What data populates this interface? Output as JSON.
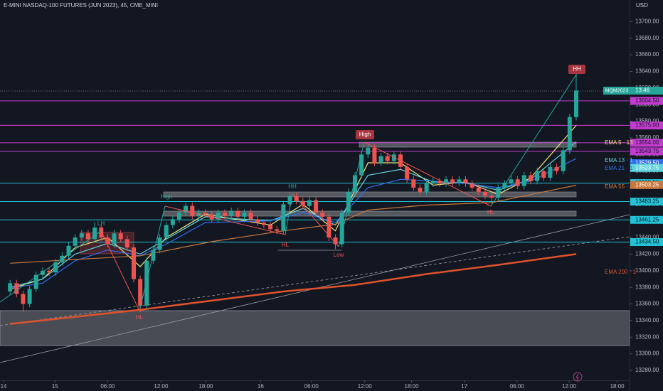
{
  "chart_data": {
    "type": "candlestick",
    "title": "E-MINI NASDAQ-100 FUTURES (JUN 2023), 45, CME_MINI",
    "currency": "USD",
    "symbol_tag": "MQM2023",
    "countdown": "13:46",
    "up_color": "#26a69a",
    "down_color": "#ef5350",
    "xlim": [
      -1.55,
      95.2
    ],
    "ylim": [
      13268,
      13726
    ],
    "xticks": [
      {
        "value": -1,
        "label": "14"
      },
      {
        "value": 6.9,
        "label": "15"
      },
      {
        "value": 15,
        "label": "06:00"
      },
      {
        "value": 23.2,
        "label": "12:00"
      },
      {
        "value": 30.1,
        "label": "18:00"
      },
      {
        "value": 38.5,
        "label": "16"
      },
      {
        "value": 46.3,
        "label": "06:00"
      },
      {
        "value": 54.5,
        "label": "12:00"
      },
      {
        "value": 61.7,
        "label": "18:00"
      },
      {
        "value": 69.8,
        "label": "17"
      },
      {
        "value": 77.9,
        "label": "06:00"
      },
      {
        "value": 85.9,
        "label": "12:00"
      },
      {
        "value": 93.3,
        "label": "18:00"
      }
    ],
    "yticks": [
      {
        "value": 13280,
        "label": "13280.00"
      },
      {
        "value": 13300,
        "label": "13300.00"
      },
      {
        "value": 13320,
        "label": "13320.00"
      },
      {
        "value": 13340,
        "label": "13340.00"
      },
      {
        "value": 13360,
        "label": "13360.00"
      },
      {
        "value": 13380,
        "label": "13380.00"
      },
      {
        "value": 13400,
        "label": "13400.00"
      },
      {
        "value": 13420,
        "label": "13420.00"
      },
      {
        "value": 13440,
        "label": "13440.00"
      },
      {
        "value": 13460,
        "label": "13460.00"
      },
      {
        "value": 13480,
        "label": "13480.00"
      },
      {
        "value": 13500,
        "label": "13500.00"
      },
      {
        "value": 13520,
        "label": "13520.00"
      },
      {
        "value": 13540,
        "label": "13540.00"
      },
      {
        "value": 13560,
        "label": "13560.00"
      },
      {
        "value": 13580,
        "label": "13580.00"
      },
      {
        "value": 13600,
        "label": "13600.00"
      },
      {
        "value": 13620,
        "label": "13620.00"
      },
      {
        "value": 13640,
        "label": "13640.00"
      },
      {
        "value": 13660,
        "label": "13660.00"
      },
      {
        "value": 13680,
        "label": "13680.00"
      },
      {
        "value": 13700,
        "label": "13700.00"
      }
    ],
    "open": [
      13375,
      13385,
      13372,
      13360,
      13378,
      13395,
      13400,
      13398,
      13410,
      13418,
      13430,
      13440,
      13445,
      13438,
      13452,
      13440,
      13432,
      13445,
      13438,
      13428,
      13390,
      13358,
      13412,
      13425,
      13440,
      13455,
      13462,
      13470,
      13478,
      13466,
      13470,
      13468,
      13462,
      13470,
      13466,
      13472,
      13465,
      13470,
      13462,
      13458,
      13455,
      13450,
      13448,
      13480,
      13490,
      13484,
      13478,
      13485,
      13470,
      13465,
      13440,
      13432,
      13470,
      13495,
      13515,
      13540,
      13548,
      13530,
      13538,
      13532,
      13540,
      13525,
      13510,
      13500,
      13495,
      13505,
      13508,
      13505,
      13510,
      13506,
      13510,
      13505,
      13500,
      13495,
      13490,
      13488,
      13500,
      13505,
      13510,
      13502,
      13515,
      13508,
      13520,
      13512,
      13525,
      13520,
      13545,
      13585
    ],
    "high": [
      13389,
      13389,
      13376,
      13382,
      13399,
      13404,
      13404,
      13414,
      13422,
      13434,
      13444,
      13449,
      13449,
      13458,
      13456,
      13444,
      13449,
      13449,
      13442,
      13432,
      13394,
      13416,
      13429,
      13444,
      13459,
      13466,
      13474,
      13482,
      13482,
      13474,
      13474,
      13472,
      13474,
      13474,
      13476,
      13476,
      13474,
      13474,
      13466,
      13462,
      13459,
      13454,
      13484,
      13494,
      13494,
      13488,
      13489,
      13489,
      13474,
      13469,
      13444,
      13474,
      13499,
      13519,
      13544,
      13553,
      13552,
      13542,
      13542,
      13544,
      13544,
      13529,
      13514,
      13504,
      13509,
      13512,
      13512,
      13514,
      13514,
      13514,
      13514,
      13509,
      13504,
      13499,
      13494,
      13504,
      13509,
      13514,
      13514,
      13519,
      13519,
      13524,
      13524,
      13529,
      13529,
      13549,
      13589,
      13637
    ],
    "low": [
      13371,
      13368,
      13350,
      13356,
      13374,
      13391,
      13394,
      13394,
      13406,
      13414,
      13426,
      13436,
      13434,
      13434,
      13436,
      13428,
      13428,
      13434,
      13424,
      13386,
      13350,
      13354,
      13408,
      13421,
      13436,
      13451,
      13458,
      13466,
      13462,
      13462,
      13464,
      13458,
      13458,
      13462,
      13462,
      13461,
      13461,
      13458,
      13454,
      13451,
      13446,
      13444,
      13444,
      13476,
      13480,
      13474,
      13474,
      13466,
      13461,
      13436,
      13426,
      13428,
      13466,
      13491,
      13511,
      13536,
      13526,
      13526,
      13528,
      13528,
      13521,
      13506,
      13496,
      13491,
      13491,
      13501,
      13501,
      13501,
      13502,
      13502,
      13501,
      13496,
      13491,
      13486,
      13482,
      13484,
      13496,
      13501,
      13498,
      13498,
      13504,
      13504,
      13508,
      13508,
      13516,
      13516,
      13541,
      13581
    ],
    "close": [
      13385,
      13372,
      13360,
      13378,
      13395,
      13400,
      13398,
      13410,
      13418,
      13430,
      13440,
      13445,
      13438,
      13452,
      13440,
      13432,
      13445,
      13438,
      13428,
      13390,
      13358,
      13412,
      13425,
      13440,
      13455,
      13462,
      13470,
      13478,
      13466,
      13470,
      13468,
      13462,
      13470,
      13466,
      13472,
      13465,
      13470,
      13462,
      13458,
      13455,
      13450,
      13448,
      13480,
      13490,
      13484,
      13478,
      13485,
      13470,
      13465,
      13440,
      13432,
      13470,
      13495,
      13515,
      13540,
      13548,
      13530,
      13538,
      13532,
      13540,
      13525,
      13510,
      13500,
      13495,
      13505,
      13508,
      13505,
      13510,
      13506,
      13510,
      13505,
      13500,
      13495,
      13490,
      13488,
      13500,
      13505,
      13510,
      13502,
      13515,
      13508,
      13520,
      13512,
      13525,
      13520,
      13545,
      13585,
      13617
    ],
    "series": [
      {
        "name": "EMA 5 · 13",
        "color": "#f3e27a",
        "x": [
          0,
          5,
          10,
          15,
          20,
          24,
          30,
          40,
          45,
          50,
          55,
          60,
          65,
          70,
          75,
          80,
          87
        ],
        "values": [
          13378,
          13390,
          13428,
          13440,
          13405,
          13440,
          13468,
          13455,
          13480,
          13448,
          13530,
          13530,
          13503,
          13507,
          13492,
          13512,
          13575
        ]
      },
      {
        "name": "EMA 13 · 1",
        "color": "#5fd3e0",
        "x": [
          0,
          5,
          10,
          15,
          20,
          24,
          30,
          40,
          45,
          50,
          55,
          60,
          65,
          70,
          75,
          80,
          87
        ],
        "values": [
          13380,
          13390,
          13420,
          13433,
          13420,
          13438,
          13465,
          13460,
          13475,
          13455,
          13515,
          13522,
          13507,
          13506,
          13497,
          13510,
          13555
        ]
      },
      {
        "name": "EMA 21 · 1",
        "color": "#2f6df0",
        "x": [
          0,
          5,
          10,
          15,
          20,
          24,
          30,
          40,
          45,
          50,
          55,
          60,
          65,
          70,
          75,
          80,
          87
        ],
        "values": [
          13379,
          13385,
          13412,
          13425,
          13418,
          13432,
          13458,
          13460,
          13470,
          13458,
          13500,
          13510,
          13508,
          13505,
          13500,
          13508,
          13535
        ]
      },
      {
        "name": "EMA 55 · 1",
        "color": "#c9773a",
        "x": [
          0,
          20,
          31,
          42,
          50,
          55,
          64,
          74,
          87
        ],
        "values": [
          13409,
          13418,
          13435,
          13448,
          13456,
          13473,
          13479,
          13482,
          13503
        ]
      },
      {
        "name": "EMA 200 · 1",
        "color": "#e0522b",
        "x": [
          0,
          20,
          42,
          53,
          64,
          75,
          87
        ],
        "values": [
          13336,
          13353,
          13375,
          13383,
          13396,
          13407,
          13420
        ]
      }
    ],
    "levels": [
      {
        "value": 13604.5,
        "label": "13604.50",
        "color": "#c43bd0"
      },
      {
        "value": 13575,
        "label": "13575.00",
        "color": "#c43bd0"
      },
      {
        "value": 13554,
        "label": "13554.00",
        "color": "#c43bd0"
      },
      {
        "value": 13543.75,
        "label": "13543.75",
        "color": "#c43bd0"
      },
      {
        "value": 13505.5,
        "label": "13505.50",
        "color": "#22c3d6"
      },
      {
        "value": 13483.25,
        "label": "13483.25",
        "color": "#22c3d6"
      },
      {
        "value": 13461.25,
        "label": "13461.25",
        "color": "#22c3d6"
      },
      {
        "value": 13434.5,
        "label": "13434.50",
        "color": "#22c3d6"
      }
    ],
    "price_tags": [
      {
        "value": 13529.5,
        "label": "13529.50",
        "color": "#2f6df0"
      },
      {
        "value": 13523.75,
        "label": "13523.75",
        "color": "#5fd3e0"
      },
      {
        "value": 13503.25,
        "label": "13503.25",
        "color": "#c9773a"
      }
    ],
    "annotations": [
      "HH",
      "High",
      "LH",
      "High",
      "HH",
      "HL",
      "HL",
      "Low",
      "HL"
    ]
  }
}
